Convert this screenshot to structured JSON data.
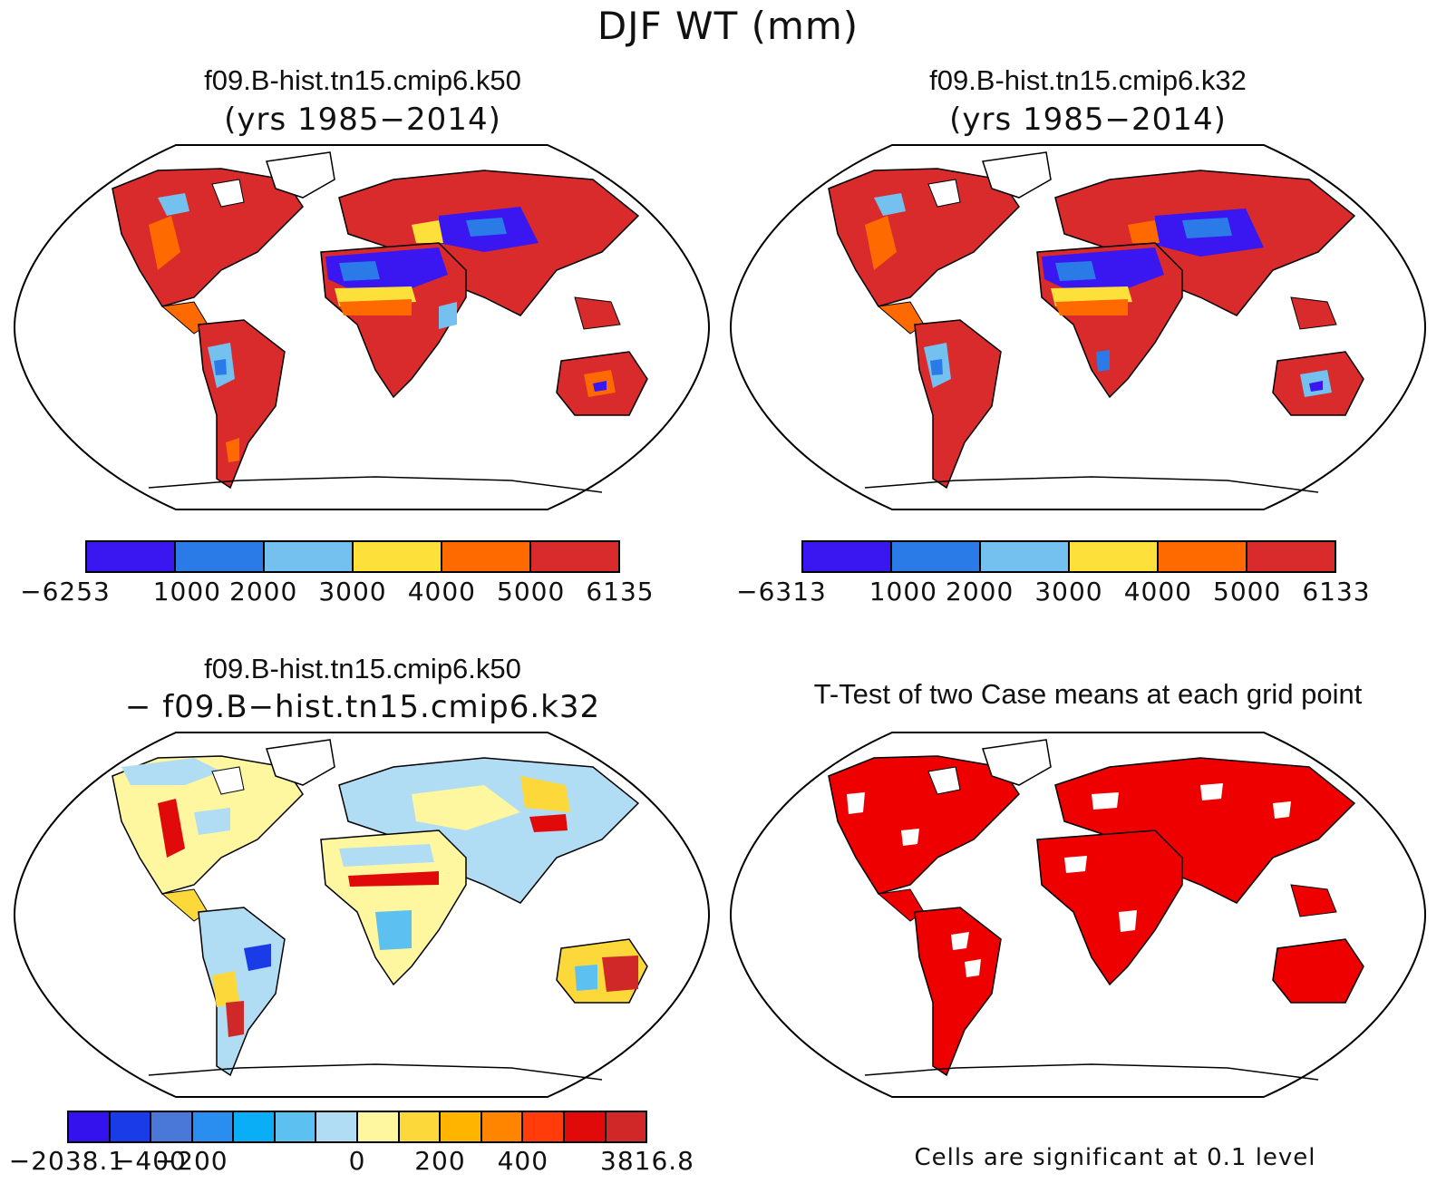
{
  "main_title": "DJF WT (mm)",
  "panels": [
    {
      "title": "f09.B-hist.tn15.cmip6.k50",
      "subtitle": "(yrs 1985−2014)",
      "colorbar": {
        "colors": [
          "#3a16f0",
          "#2a7ae8",
          "#74c0ee",
          "#fde03a",
          "#ff6a00",
          "#d92b2b"
        ],
        "labels": [
          "−6253",
          "1000",
          "2000",
          "3000",
          "4000",
          "5000",
          "6135"
        ]
      }
    },
    {
      "title": "f09.B-hist.tn15.cmip6.k32",
      "subtitle": "(yrs 1985−2014)",
      "colorbar": {
        "colors": [
          "#3a16f0",
          "#2a7ae8",
          "#74c0ee",
          "#fde03a",
          "#ff6a00",
          "#d92b2b"
        ],
        "labels": [
          "−6313",
          "1000",
          "2000",
          "3000",
          "4000",
          "5000",
          "6133"
        ]
      }
    },
    {
      "title": "f09.B-hist.tn15.cmip6.k50",
      "subtitle": "− f09.B−hist.tn15.cmip6.k32",
      "colorbar": {
        "colors": [
          "#3412ee",
          "#1a3ce8",
          "#4a78d8",
          "#2a8ef0",
          "#0aaef6",
          "#5cc0f0",
          "#b0dcf4",
          "#fff7a0",
          "#fcd83a",
          "#ffb400",
          "#ff8400",
          "#ff3c0a",
          "#e00a0a",
          "#d02828"
        ],
        "labels": [
          "−2038.1",
          "−400",
          "−200",
          "0",
          "200",
          "400",
          "3816.8"
        ]
      }
    },
    {
      "title": "T-Test of two Case means at each grid point",
      "footnote": "Cells are significant at 0.1 level"
    }
  ]
}
